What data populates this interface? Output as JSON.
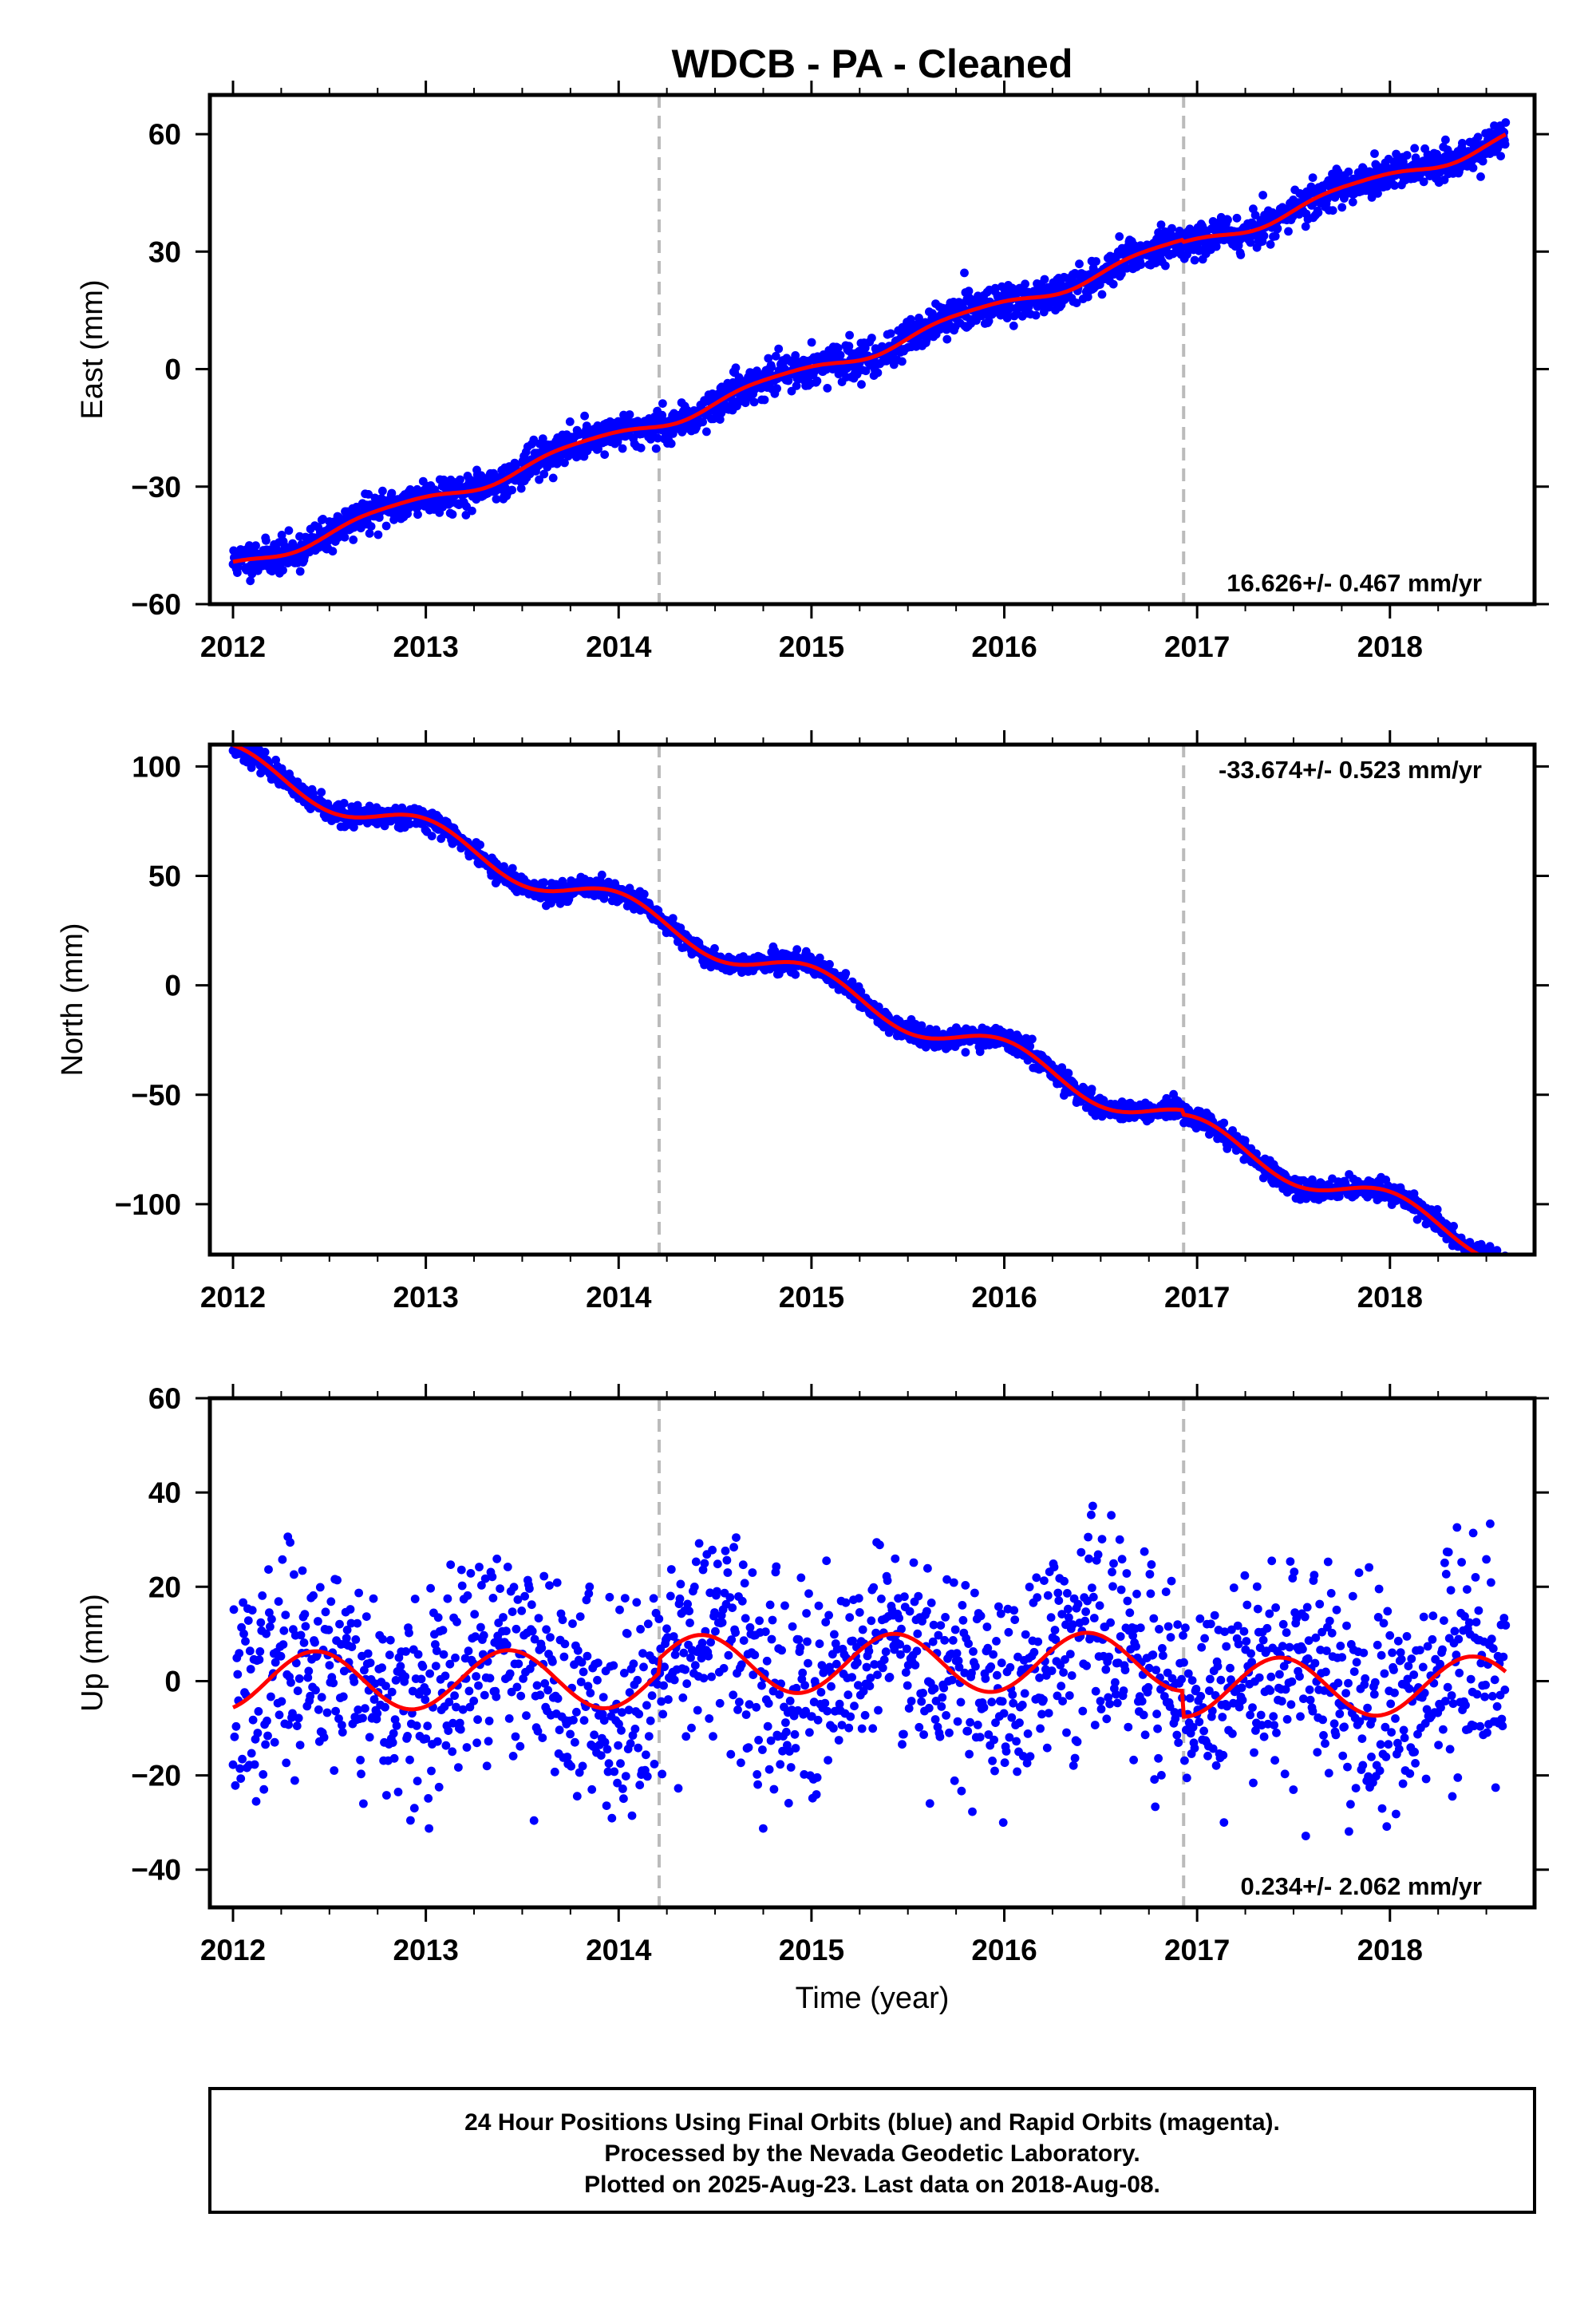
{
  "title": "WDCB  - PA - Cleaned",
  "footer": {
    "line1": "24 Hour Positions Using Final Orbits (blue) and Rapid Orbits (magenta).",
    "line2": "Processed by the Nevada Geodetic Laboratory.",
    "line3": "Plotted on 2025-Aug-23. Last data on 2018-Aug-08."
  },
  "colors": {
    "points": "#0000ff",
    "model": "#ff0000",
    "event_lines": "#bbbbbb",
    "frame": "#000000"
  },
  "chart_data": [
    {
      "type": "scatter",
      "ylabel": "East (mm)",
      "xlabel": "",
      "xlim": [
        2011.88,
        2018.75
      ],
      "ylim": [
        -60,
        70
      ],
      "xticks": [
        2012,
        2013,
        2014,
        2015,
        2016,
        2017,
        2018
      ],
      "xtick_labels": [
        "2012",
        "2013",
        "2014",
        "2015",
        "2016",
        "2017",
        "2018"
      ],
      "yticks": [
        -60,
        -30,
        0,
        30,
        60
      ],
      "ytick_labels": [
        "−60",
        "−30",
        "0",
        "30",
        "60"
      ],
      "event_lines_x": [
        2014.21,
        2016.93
      ],
      "rate_text": "16.626+/- 0.467 mm/yr",
      "rate_position": "bottom-right",
      "model": {
        "name": "",
        "rate_mm_per_yr": 16.626,
        "ref_year": 2012.0,
        "ref_value": -50,
        "annual_sin": -1.6,
        "annual_cos": 0.6,
        "semiannual_sin": 0.3,
        "semiannual_cos": 0.2,
        "steps": [
          {
            "year": 2016.93,
            "offset": -0.6
          }
        ]
      },
      "scatter": {
        "noise_mm": 2.2,
        "seed": 11,
        "gaps": [],
        "start": 2012.0,
        "end": 2018.6,
        "n_points": 2350
      }
    },
    {
      "type": "scatter",
      "ylabel": "North (mm)",
      "xlabel": "",
      "xlim": [
        2011.88,
        2018.75
      ],
      "ylim": [
        -123,
        110
      ],
      "xticks": [
        2012,
        2013,
        2014,
        2015,
        2016,
        2017,
        2018
      ],
      "xtick_labels": [
        "2012",
        "2013",
        "2014",
        "2015",
        "2016",
        "2017",
        "2018"
      ],
      "yticks": [
        -100,
        -50,
        0,
        50,
        100
      ],
      "ytick_labels": [
        "−100",
        "−50",
        "0",
        "50",
        "100"
      ],
      "event_lines_x": [
        2014.21,
        2016.93
      ],
      "rate_text": "-33.674+/- 0.523 mm/yr",
      "rate_position": "top-right",
      "model": {
        "name": "",
        "rate_mm_per_yr": -33.674,
        "ref_year": 2012.0,
        "ref_value": 103,
        "annual_sin": 0.5,
        "annual_cos": 6.8,
        "semiannual_sin": 0.0,
        "semiannual_cos": 0.0,
        "steps": [
          {
            "year": 2016.93,
            "offset": -2.0
          }
        ]
      },
      "scatter": {
        "noise_mm": 2.3,
        "seed": 23,
        "gaps": [],
        "start": 2012.0,
        "end": 2018.6,
        "n_points": 2350
      }
    },
    {
      "type": "scatter",
      "ylabel": "Up (mm)",
      "xlabel": "Time (year)",
      "xlim": [
        2011.88,
        2018.75
      ],
      "ylim": [
        -48,
        60
      ],
      "xticks": [
        2012,
        2013,
        2014,
        2015,
        2016,
        2017,
        2018
      ],
      "xtick_labels": [
        "2012",
        "2013",
        "2014",
        "2015",
        "2016",
        "2017",
        "2018"
      ],
      "yticks": [
        -40,
        -20,
        0,
        20,
        40,
        60
      ],
      "ytick_labels": [
        "−40",
        "−20",
        "0",
        "20",
        "40",
        "60"
      ],
      "event_lines_x": [
        2014.21,
        2016.93
      ],
      "rate_text": "0.234+/- 2.062 mm/yr",
      "rate_position": "bottom-right",
      "model": {
        "name": "",
        "rate_mm_per_yr": 0.234,
        "ref_year": 2012.0,
        "ref_value": 0.0,
        "annual_sin": 2.7,
        "annual_cos": -5.6,
        "semiannual_sin": 0.0,
        "semiannual_cos": 0.0,
        "steps": [
          {
            "year": 2014.21,
            "offset": 3.0
          },
          {
            "year": 2016.93,
            "offset": -5.5
          }
        ]
      },
      "scatter": {
        "noise_mm": 11.0,
        "seed": 37,
        "gaps": [],
        "start": 2012.0,
        "end": 2018.6,
        "n_points": 1650
      }
    }
  ]
}
